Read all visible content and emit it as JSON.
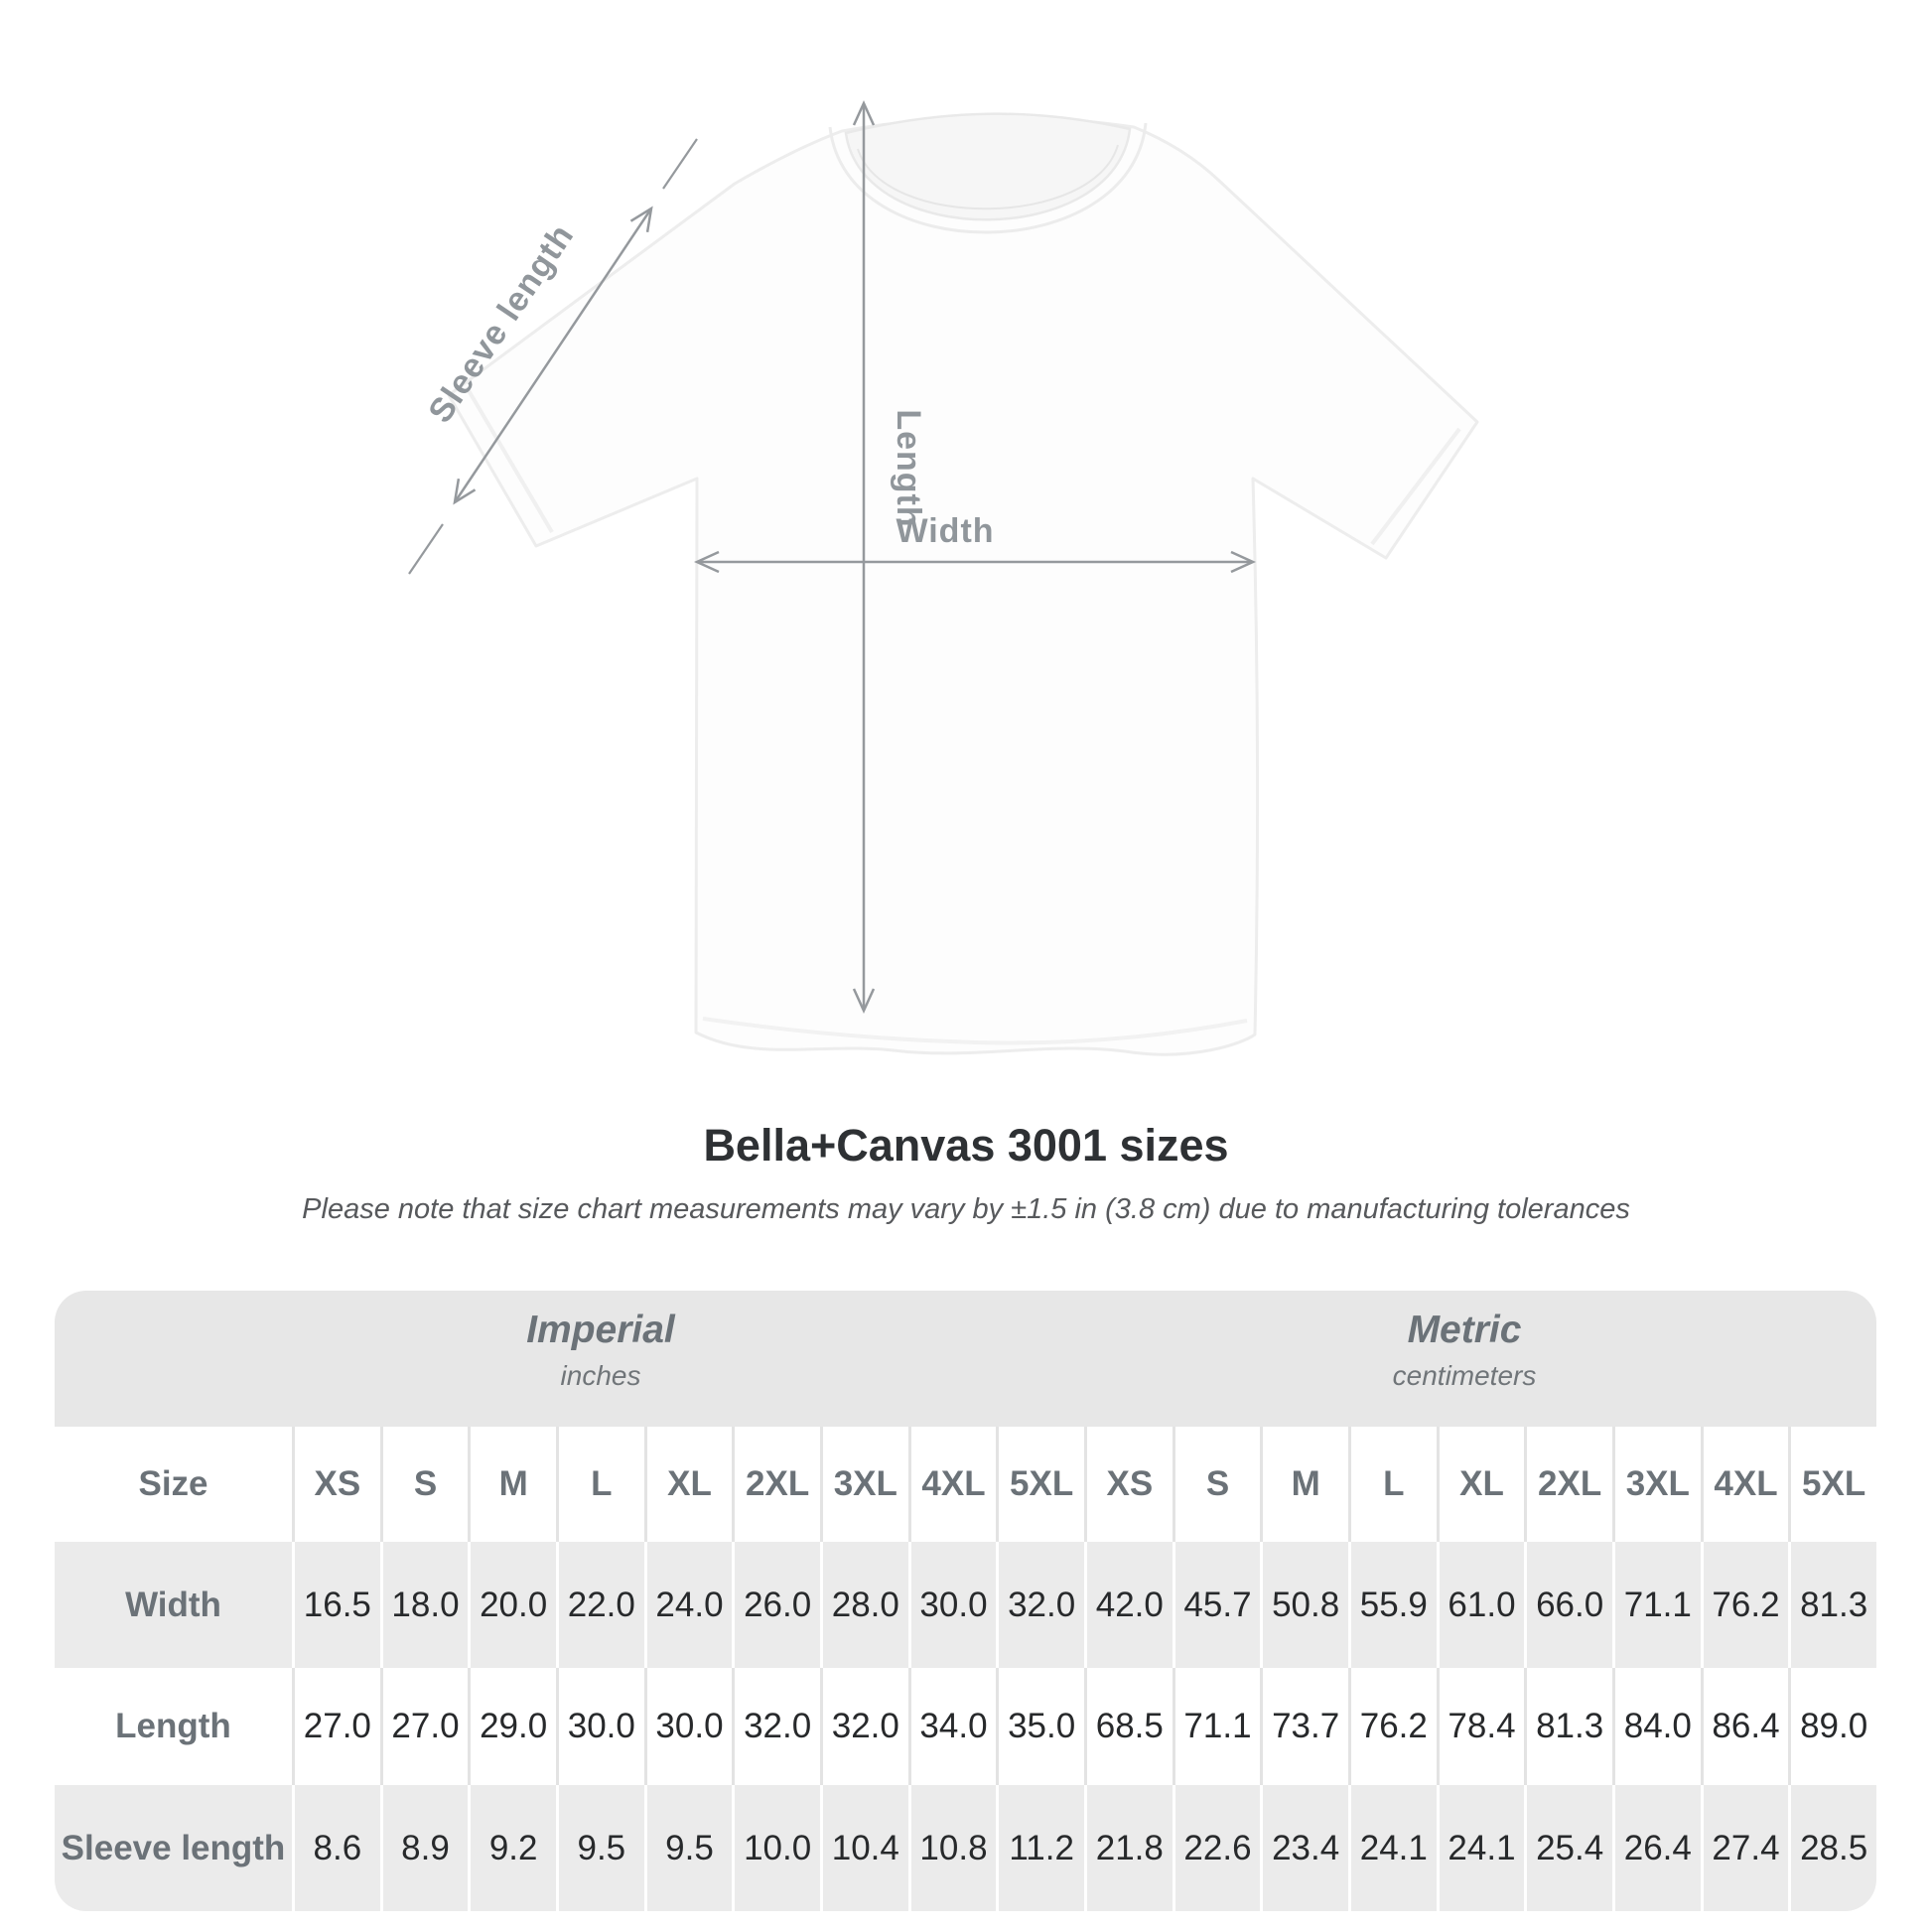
{
  "diagram": {
    "sleeve_length_label": "Sleeve length",
    "length_label": "Length",
    "width_label": "Width"
  },
  "title": "Bella+Canvas 3001 sizes",
  "subtitle": "Please note that size chart measurements may vary by ±1.5 in (3.8 cm) due to manufacturing tolerances",
  "table": {
    "groups": [
      {
        "name": "Imperial",
        "unit": "inches"
      },
      {
        "name": "Metric",
        "unit": "centimeters"
      }
    ],
    "size_column_header": "Size",
    "size_headers": [
      "XS",
      "S",
      "M",
      "L",
      "XL",
      "2XL",
      "3XL",
      "4XL",
      "5XL"
    ],
    "rows": [
      {
        "label": "Width",
        "imperial": [
          "16.5",
          "18.0",
          "20.0",
          "22.0",
          "24.0",
          "26.0",
          "28.0",
          "30.0",
          "32.0"
        ],
        "metric": [
          "42.0",
          "45.7",
          "50.8",
          "55.9",
          "61.0",
          "66.0",
          "71.1",
          "76.2",
          "81.3"
        ]
      },
      {
        "label": "Length",
        "imperial": [
          "27.0",
          "27.0",
          "29.0",
          "30.0",
          "30.0",
          "32.0",
          "32.0",
          "34.0",
          "35.0"
        ],
        "metric": [
          "68.5",
          "71.1",
          "73.7",
          "76.2",
          "78.4",
          "81.3",
          "84.0",
          "86.4",
          "89.0"
        ]
      },
      {
        "label": "Sleeve length",
        "imperial": [
          "8.6",
          "8.9",
          "9.2",
          "9.5",
          "9.5",
          "10.0",
          "10.4",
          "10.8",
          "11.2"
        ],
        "metric": [
          "21.8",
          "22.6",
          "23.4",
          "24.1",
          "24.1",
          "25.4",
          "26.4",
          "27.4",
          "28.5"
        ]
      }
    ]
  },
  "chart_data": {
    "type": "table",
    "title": "Bella+Canvas 3001 sizes",
    "subtitle": "Please note that size chart measurements may vary by ±1.5 in (3.8 cm) due to manufacturing tolerances",
    "unit_groups": [
      "Imperial (inches)",
      "Metric (centimeters)"
    ],
    "columns": [
      "Size",
      "XS",
      "S",
      "M",
      "L",
      "XL",
      "2XL",
      "3XL",
      "4XL",
      "5XL"
    ],
    "rows": [
      {
        "label": "Width",
        "imperial": [
          16.5,
          18.0,
          20.0,
          22.0,
          24.0,
          26.0,
          28.0,
          30.0,
          32.0
        ],
        "metric": [
          42.0,
          45.7,
          50.8,
          55.9,
          61.0,
          66.0,
          71.1,
          76.2,
          81.3
        ]
      },
      {
        "label": "Length",
        "imperial": [
          27.0,
          27.0,
          29.0,
          30.0,
          30.0,
          32.0,
          32.0,
          34.0,
          35.0
        ],
        "metric": [
          68.5,
          71.1,
          73.7,
          76.2,
          78.4,
          81.3,
          84.0,
          86.4,
          89.0
        ]
      },
      {
        "label": "Sleeve length",
        "imperial": [
          8.6,
          8.9,
          9.2,
          9.5,
          9.5,
          10.0,
          10.4,
          10.8,
          11.2
        ],
        "metric": [
          21.8,
          22.6,
          23.4,
          24.1,
          24.1,
          25.4,
          26.4,
          27.4,
          28.5
        ]
      }
    ],
    "diagram_annotations": [
      "Sleeve length",
      "Length",
      "Width"
    ]
  },
  "colors": {
    "band_background": "#e7e7e7",
    "alt_row_background": "#ebebeb",
    "label_text": "#6b7278",
    "value_text": "#27292b",
    "dimension_lines": "#95999d"
  }
}
